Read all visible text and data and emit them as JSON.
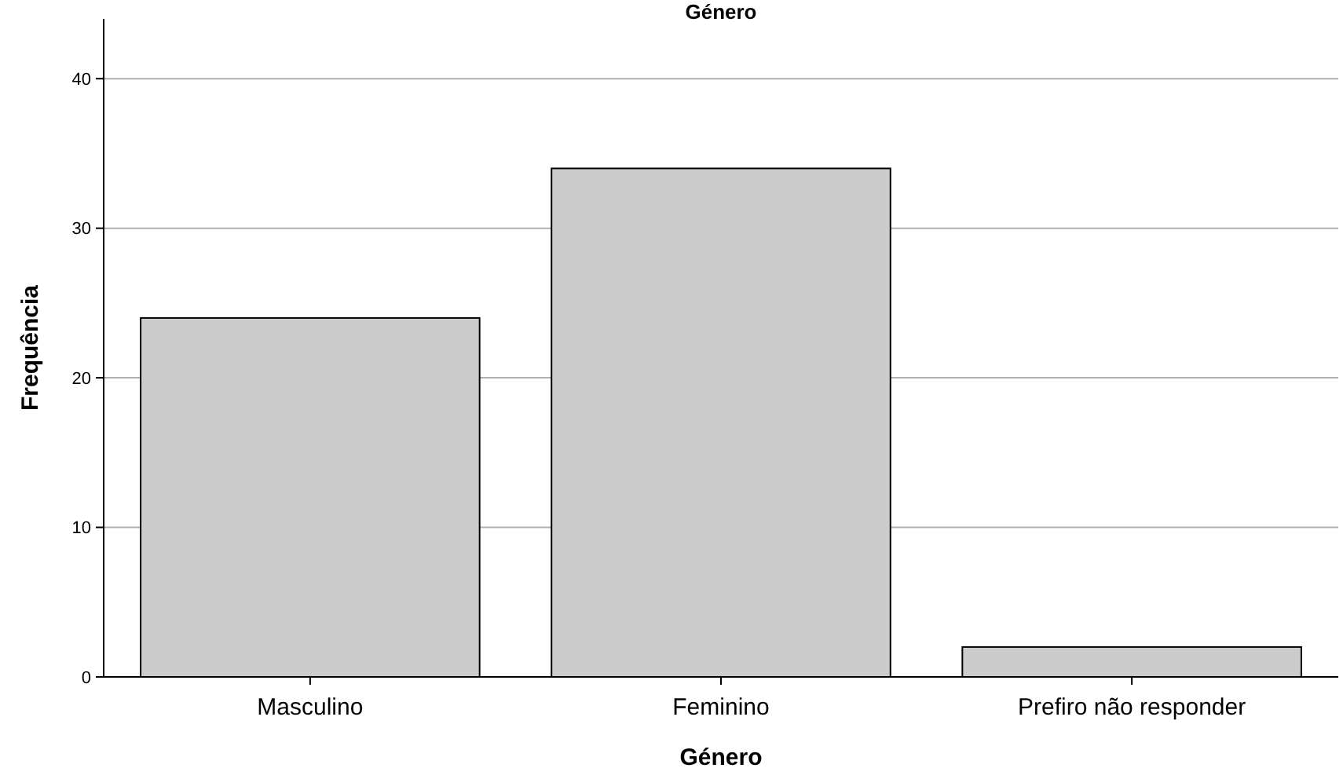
{
  "chart_data": {
    "type": "bar",
    "title": "Género",
    "xlabel": "Género",
    "ylabel": "Frequência",
    "categories": [
      "Masculino",
      "Feminino",
      "Prefiro não responder"
    ],
    "values": [
      24,
      34,
      2
    ],
    "color": "#cccccc",
    "ylim": [
      0,
      44
    ],
    "yticks": [
      0,
      10,
      20,
      30,
      40
    ],
    "grid": "y"
  }
}
